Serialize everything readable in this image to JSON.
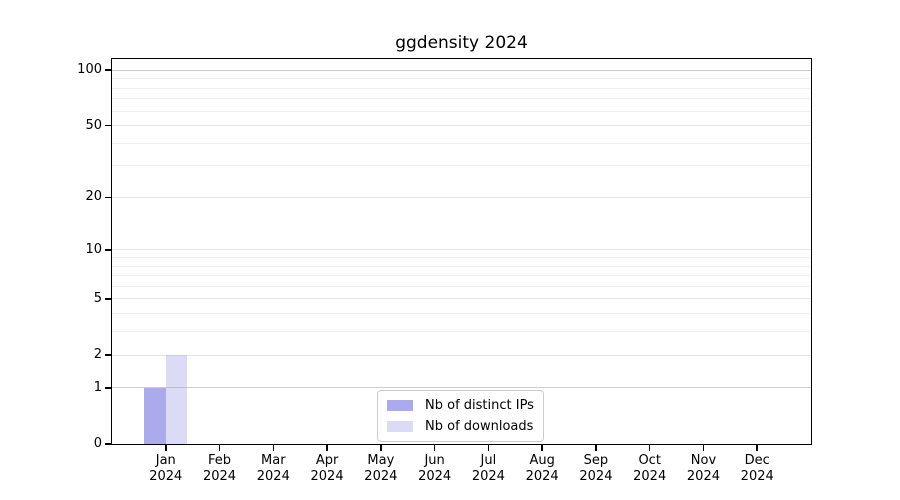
{
  "chart_data": {
    "type": "bar",
    "title": "ggdensity 2024",
    "months": [
      "Jan",
      "Feb",
      "Mar",
      "Apr",
      "May",
      "Jun",
      "Jul",
      "Aug",
      "Sep",
      "Oct",
      "Nov",
      "Dec"
    ],
    "year": "2024",
    "categories": [
      "Jan 2024",
      "Feb 2024",
      "Mar 2024",
      "Apr 2024",
      "May 2024",
      "Jun 2024",
      "Jul 2024",
      "Aug 2024",
      "Sep 2024",
      "Oct 2024",
      "Nov 2024",
      "Dec 2024"
    ],
    "series": [
      {
        "name": "Nb of distinct IPs",
        "values": [
          1,
          0,
          0,
          0,
          0,
          0,
          0,
          0,
          0,
          0,
          0,
          0
        ],
        "fill": "rgba(137,137,229,0.72)",
        "rendered_color": "#aaaaee"
      },
      {
        "name": "Nb of downloads",
        "values": [
          2,
          0,
          0,
          0,
          0,
          0,
          0,
          0,
          0,
          0,
          0,
          0
        ],
        "fill": "rgba(152,152,229,0.35)",
        "rendered_color": "#dbdbf6"
      }
    ],
    "xlabel": "",
    "ylabel": "",
    "y_scale": "log1p",
    "ylim": [
      0,
      115
    ],
    "y_ticks": [
      0,
      1,
      2,
      5,
      10,
      20,
      50,
      100
    ],
    "y_minor_gridlines": [
      3,
      4,
      6,
      7,
      8,
      9,
      30,
      40,
      60,
      70,
      80,
      90
    ],
    "y_emphasized_gridlines": [
      1,
      100
    ],
    "grid": "horizontal",
    "legend_position": "bottom-center",
    "colors": {
      "grid_major": "#e4e4e4",
      "grid_emphasis": "#cdcdcd",
      "grid_minor": "#f1f1f1",
      "axis": "#000000",
      "legend_border": "#cccccc",
      "background": "#ffffff"
    }
  }
}
